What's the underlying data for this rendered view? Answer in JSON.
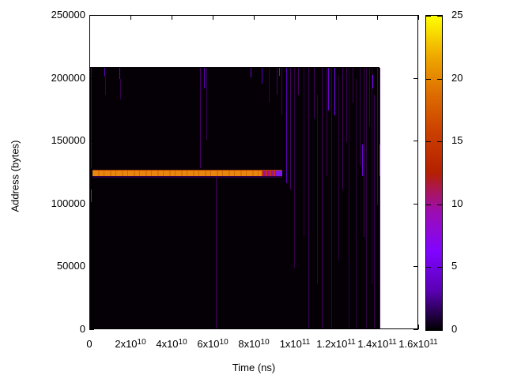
{
  "figure": {
    "background": "#ffffff",
    "text_color": "#000000"
  },
  "chart_data": {
    "type": "heatmap",
    "title": "",
    "xlabel": "Time (ns)",
    "ylabel": "Address (bytes)",
    "xlim": [
      0,
      160000000000.0
    ],
    "ylim": [
      0,
      250000
    ],
    "grid": false,
    "legend_position": "colorbar-right",
    "x_ticks": [
      {
        "t": 0,
        "mantissa": "0",
        "exp": ""
      },
      {
        "t": 20000000000.0,
        "mantissa": "2x10",
        "exp": "10"
      },
      {
        "t": 40000000000.0,
        "mantissa": "4x10",
        "exp": "10"
      },
      {
        "t": 60000000000.0,
        "mantissa": "6x10",
        "exp": "10"
      },
      {
        "t": 80000000000.0,
        "mantissa": "8x10",
        "exp": "10"
      },
      {
        "t": 100000000000.0,
        "mantissa": "1x10",
        "exp": "11"
      },
      {
        "t": 120000000000.0,
        "mantissa": "1.2x10",
        "exp": "11"
      },
      {
        "t": 140000000000.0,
        "mantissa": "1.4x10",
        "exp": "11"
      },
      {
        "t": 160000000000.0,
        "mantissa": "1.6x10",
        "exp": "11"
      }
    ],
    "y_ticks": [
      {
        "a": 0,
        "label": "0"
      },
      {
        "a": 50000,
        "label": "50000"
      },
      {
        "a": 100000,
        "label": "100000"
      },
      {
        "a": 150000,
        "label": "150000"
      },
      {
        "a": 200000,
        "label": "200000"
      },
      {
        "a": 250000,
        "label": "250000"
      }
    ],
    "colorbar": {
      "min": 0,
      "max": 25,
      "ticks": [
        {
          "v": 0,
          "label": "0"
        },
        {
          "v": 5,
          "label": "5"
        },
        {
          "v": 10,
          "label": "10"
        },
        {
          "v": 15,
          "label": "15"
        },
        {
          "v": 20,
          "label": "20"
        },
        {
          "v": 25,
          "label": "25"
        }
      ],
      "palette_stops": [
        {
          "pos": 0,
          "color": "#000000"
        },
        {
          "pos": 0.125,
          "color": "#5a00b4"
        },
        {
          "pos": 0.25,
          "color": "#8004ff"
        },
        {
          "pos": 0.375,
          "color": "#9c0db4"
        },
        {
          "pos": 0.45,
          "color": "#ab174f"
        },
        {
          "pos": 0.5,
          "color": "#b42000"
        },
        {
          "pos": 0.625,
          "color": "#ca3e00"
        },
        {
          "pos": 0.75,
          "color": "#dd6c00"
        },
        {
          "pos": 0.875,
          "color": "#efab00"
        },
        {
          "pos": 1,
          "color": "#ffff00"
        }
      ]
    },
    "sampled_region": {
      "t0": 0,
      "t1": 141200000000.0,
      "a0": 0,
      "a1": 208500,
      "base_value": 0,
      "base_color": "#040006"
    },
    "hot_bar": {
      "address_top": 126900,
      "address_bottom": 121900,
      "top_edge_color": "#b33a00",
      "segments": [
        {
          "t0": 1500000000.0,
          "t1": 83700000000.0,
          "style": "striated",
          "value_est": 20,
          "colors": [
            "#e8860e",
            "#d9730a",
            "#cc6a06"
          ]
        },
        {
          "t0": 83700000000.0,
          "t1": 90800000000.0,
          "style": "stripes",
          "value_est": 12,
          "colors": [
            "#c23018",
            "#a01090",
            "#8a14b4"
          ]
        },
        {
          "t0": 90800000000.0,
          "t1": 93800000000.0,
          "style": "solid",
          "value_est": 6,
          "colors": [
            "#7c18e8"
          ]
        }
      ],
      "under_line": {
        "a0": 120600,
        "a1": 121900,
        "color": "#2d0140"
      }
    },
    "columns": [
      {
        "t": 800000000.0,
        "aTop": 207900,
        "aBot": 128100,
        "c": "#45015e"
      },
      {
        "t": 800000000.0,
        "aTop": 111200,
        "aBot": 101100,
        "c": "#7d03fe"
      },
      {
        "t": 7300000000.0,
        "aTop": 207900,
        "aBot": 201000,
        "c": "#6a02c8"
      },
      {
        "t": 7700000000.0,
        "aTop": 201000,
        "aBot": 186600,
        "c": "#3a0150"
      },
      {
        "t": 14600000000.0,
        "aTop": 207900,
        "aBot": 199100,
        "c": "#6a02c8"
      },
      {
        "t": 15000000000.0,
        "aTop": 199100,
        "aBot": 182800,
        "c": "#3a0150"
      },
      {
        "t": 53800000000.0,
        "aTop": 207900,
        "aBot": 128100,
        "c": "#45015e"
      },
      {
        "t": 55800000000.0,
        "aTop": 207900,
        "aBot": 191600,
        "c": "#5a00b4"
      },
      {
        "t": 56900000000.0,
        "aTop": 207900,
        "aBot": 150800,
        "c": "#3a0150"
      },
      {
        "t": 61500000000.0,
        "aTop": 122500,
        "aBot": 0,
        "c": "#45015e"
      },
      {
        "t": 78500000000.0,
        "aTop": 207900,
        "aBot": 200400,
        "c": "#6a02c8"
      },
      {
        "t": 83800000000.0,
        "aTop": 207900,
        "aBot": 195400,
        "c": "#5a00b4"
      },
      {
        "t": 87300000000.0,
        "aTop": 207900,
        "aBot": 180300,
        "c": "#30013f"
      },
      {
        "t": 91200000000.0,
        "aTop": 207900,
        "aBot": 186600,
        "c": "#45015e"
      },
      {
        "t": 92300000000.0,
        "aTop": 207900,
        "aBot": 201600,
        "c": "#7d03fe"
      },
      {
        "t": 93500000000.0,
        "aTop": 207900,
        "aBot": 170900,
        "c": "#3a0150"
      },
      {
        "t": 95800000000.0,
        "aTop": 207900,
        "aBot": 116200,
        "c": "#5a00b4"
      },
      {
        "t": 97700000000.0,
        "aTop": 207900,
        "aBot": 111200,
        "c": "#45015e"
      },
      {
        "t": 99600000000.0,
        "aTop": 207900,
        "aBot": 48400,
        "c": "#30013f"
      },
      {
        "t": 101500000000.0,
        "aTop": 207900,
        "aBot": 186600,
        "c": "#45015e"
      },
      {
        "t": 104200000000.0,
        "aTop": 207900,
        "aBot": 73500,
        "c": "#30013f"
      },
      {
        "t": 106500000000.0,
        "aTop": 207900,
        "aBot": 0,
        "c": "#3a0150"
      },
      {
        "t": 109200000000.0,
        "aTop": 207900,
        "aBot": 167700,
        "c": "#45015e"
      },
      {
        "t": 110800000000.0,
        "aTop": 186600,
        "aBot": 35800,
        "c": "#30013f"
      },
      {
        "t": 113100000000.0,
        "aTop": 207900,
        "aBot": 0,
        "c": "#45015e"
      },
      {
        "t": 115400000000.0,
        "aTop": 207900,
        "aBot": 121900,
        "c": "#3a0150"
      },
      {
        "t": 116200000000.0,
        "aTop": 207900,
        "aBot": 174000,
        "c": "#6a02c8"
      },
      {
        "t": 117700000000.0,
        "aTop": 207900,
        "aBot": 0,
        "c": "#30013f"
      },
      {
        "t": 119200000000.0,
        "aTop": 207900,
        "aBot": 170200,
        "c": "#7d03fe"
      },
      {
        "t": 121200000000.0,
        "aTop": 202300,
        "aBot": 54700,
        "c": "#30013f"
      },
      {
        "t": 123100000000.0,
        "aTop": 207900,
        "aBot": 111200,
        "c": "#45015e"
      },
      {
        "t": 125000000000.0,
        "aTop": 207900,
        "aBot": 148900,
        "c": "#3a0150"
      },
      {
        "t": 126200000000.0,
        "aTop": 207900,
        "aBot": 0,
        "c": "#30013f"
      },
      {
        "t": 128100000000.0,
        "aTop": 207900,
        "aBot": 180300,
        "c": "#45015e"
      },
      {
        "t": 129600000000.0,
        "aTop": 199100,
        "aBot": 0,
        "c": "#30013f"
      },
      {
        "t": 131500000000.0,
        "aTop": 207900,
        "aBot": 130000,
        "c": "#3a0150"
      },
      {
        "t": 132700000000.0,
        "aTop": 147000,
        "aBot": 121900,
        "c": "#6a02c8"
      },
      {
        "t": 133500000000.0,
        "aTop": 207900,
        "aBot": 73500,
        "c": "#45015e"
      },
      {
        "t": 134600000000.0,
        "aTop": 207900,
        "aBot": 0,
        "c": "#30013f"
      },
      {
        "t": 136200000000.0,
        "aTop": 207900,
        "aBot": 161400,
        "c": "#3a0150"
      },
      {
        "t": 137300000000.0,
        "aTop": 207900,
        "aBot": 35800,
        "c": "#30013f"
      },
      {
        "t": 137700000000.0,
        "aTop": 202300,
        "aBot": 191600,
        "c": "#7d03fe"
      },
      {
        "t": 138500000000.0,
        "aTop": 186600,
        "aBot": 0,
        "c": "#3a0150"
      },
      {
        "t": 140000000000.0,
        "aTop": 207900,
        "aBot": 98600,
        "c": "#45015e"
      },
      {
        "t": 141200000000.0,
        "aTop": 207900,
        "aBot": 0,
        "c": "#4b0270"
      },
      {
        "t": 141200000000.0,
        "aTop": 147000,
        "aBot": 121900,
        "c": "#8a2be2"
      }
    ]
  }
}
